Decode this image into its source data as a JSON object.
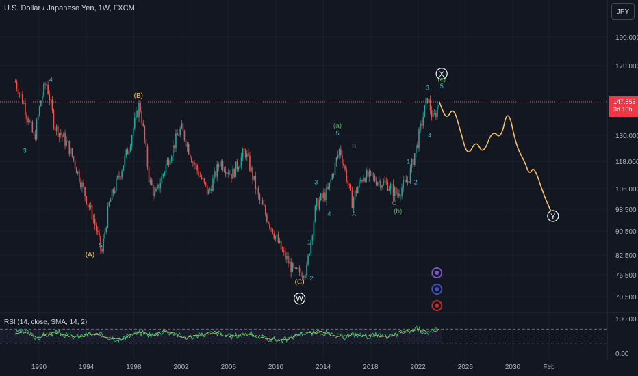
{
  "header": {
    "title": "U.S. Dollar / Japanese Yen, 1W, FXCM",
    "currency_button": "JPY"
  },
  "price_tag": {
    "price": "147.553",
    "countdown": "3d 10h",
    "color": "#f23645"
  },
  "rsi": {
    "label": "RSI (14, close, SMA, 14, 2)",
    "ticks": [
      "100.00",
      "0.00"
    ]
  },
  "colors": {
    "background": "#131722",
    "up_candle": "#26a69a",
    "down_candle": "#ef5350",
    "projection": "#f5c26b",
    "wave_cyan": "#26c6da",
    "wave_green": "#4caf50",
    "wave_yellow": "#f5c26b",
    "rsi_line": "#2ecc71",
    "rsi_sma": "#f5c26b"
  },
  "chart_data": {
    "type": "candlestick",
    "x_axis_ticks": [
      "1990",
      "1994",
      "1998",
      "2002",
      "2006",
      "2010",
      "2014",
      "2018",
      "2022",
      "2026",
      "2030",
      "Feb"
    ],
    "y_axis_ticks": [
      190.0,
      170.0,
      147.553,
      130.0,
      118.0,
      106.0,
      98.5,
      90.5,
      82.5,
      76.5,
      70.5
    ],
    "y_axis_tick_labels": [
      "190.000",
      "170.000",
      "130.000",
      "118.000",
      "106.000",
      "98.500",
      "90.500",
      "82.500",
      "76.500",
      "70.500"
    ],
    "current_price_line": 147.553,
    "price_path": [
      [
        1988.0,
        160
      ],
      [
        1988.8,
        145
      ],
      [
        1989.6,
        128
      ],
      [
        1990.2,
        150
      ],
      [
        1990.6,
        160
      ],
      [
        1991.3,
        135
      ],
      [
        1992.5,
        125
      ],
      [
        1993.8,
        105
      ],
      [
        1994.6,
        95
      ],
      [
        1995.3,
        83
      ],
      [
        1995.9,
        100
      ],
      [
        1996.8,
        112
      ],
      [
        1997.6,
        125
      ],
      [
        1998.5,
        147
      ],
      [
        1999.3,
        110
      ],
      [
        1999.8,
        103
      ],
      [
        2001.0,
        120
      ],
      [
        2002.0,
        134
      ],
      [
        2003.0,
        118
      ],
      [
        2004.3,
        104
      ],
      [
        2005.3,
        118
      ],
      [
        2006.3,
        112
      ],
      [
        2007.4,
        123
      ],
      [
        2008.5,
        103
      ],
      [
        2009.5,
        93
      ],
      [
        2010.6,
        83
      ],
      [
        2011.6,
        77
      ],
      [
        2012.6,
        78
      ],
      [
        2013.4,
        100
      ],
      [
        2014.4,
        105
      ],
      [
        2015.4,
        124
      ],
      [
        2016.4,
        101
      ],
      [
        2017.4,
        112
      ],
      [
        2018.4,
        110
      ],
      [
        2019.4,
        108
      ],
      [
        2020.2,
        104
      ],
      [
        2021.2,
        110
      ],
      [
        2022.0,
        128
      ],
      [
        2022.8,
        150
      ],
      [
        2023.3,
        138
      ],
      [
        2023.8,
        147.55
      ]
    ],
    "projection_path": [
      [
        2023.8,
        147.55
      ],
      [
        2024.4,
        138
      ],
      [
        2025.0,
        145
      ],
      [
        2025.6,
        132
      ],
      [
        2026.2,
        120
      ],
      [
        2026.9,
        128
      ],
      [
        2027.5,
        121
      ],
      [
        2028.3,
        133
      ],
      [
        2029.0,
        128
      ],
      [
        2029.6,
        145
      ],
      [
        2030.3,
        125
      ],
      [
        2031.0,
        118
      ],
      [
        2031.4,
        112
      ],
      [
        2031.8,
        116
      ],
      [
        2032.6,
        104
      ],
      [
        2033.2,
        98
      ]
    ],
    "wave_labels": [
      {
        "text": "4",
        "x": 1991.0,
        "y": 160,
        "color": "cyan"
      },
      {
        "text": "3",
        "x": 1988.8,
        "y": 122,
        "color": "cyan"
      },
      {
        "text": "(B)",
        "x": 1998.4,
        "y": 150,
        "color": "yellow"
      },
      {
        "text": "5",
        "x": 1995.2,
        "y": 85,
        "color": "cyan"
      },
      {
        "text": "(A)",
        "x": 1994.3,
        "y": 82,
        "color": "yellow"
      },
      {
        "text": "(a)",
        "x": 2015.2,
        "y": 134,
        "color": "green"
      },
      {
        "text": "5",
        "x": 2015.2,
        "y": 130,
        "color": "cyan"
      },
      {
        "text": "B",
        "x": 2016.6,
        "y": 124,
        "color": "gray"
      },
      {
        "text": "3",
        "x": 2013.4,
        "y": 108,
        "color": "cyan"
      },
      {
        "text": "4",
        "x": 2014.5,
        "y": 96,
        "color": "cyan"
      },
      {
        "text": "1",
        "x": 2012.8,
        "y": 86,
        "color": "cyan"
      },
      {
        "text": "2",
        "x": 2013.0,
        "y": 75,
        "color": "cyan"
      },
      {
        "text": "(C)",
        "x": 2012.0,
        "y": 74,
        "color": "yellow"
      },
      {
        "text": "A",
        "x": 2016.6,
        "y": 96,
        "color": "gray"
      },
      {
        "text": "C",
        "x": 2020.0,
        "y": 100,
        "color": "gray"
      },
      {
        "text": "(b)",
        "x": 2020.3,
        "y": 97,
        "color": "green"
      },
      {
        "text": "1",
        "x": 2021.2,
        "y": 117,
        "color": "cyan"
      },
      {
        "text": "2",
        "x": 2021.8,
        "y": 108,
        "color": "cyan"
      },
      {
        "text": "3",
        "x": 2022.8,
        "y": 155,
        "color": "cyan"
      },
      {
        "text": "4",
        "x": 2023.0,
        "y": 129,
        "color": "cyan"
      },
      {
        "text": "5",
        "x": 2024.0,
        "y": 156,
        "color": "cyan"
      },
      {
        "text": "(c)",
        "x": 2024.0,
        "y": 160,
        "color": "green"
      }
    ],
    "circle_labels": [
      {
        "text": "X",
        "x": 2024.0,
        "y": 165
      },
      {
        "text": "W",
        "x": 2012.0,
        "y": 70
      },
      {
        "text": "Y",
        "x": 2033.4,
        "y": 96
      }
    ],
    "rsi_range": [
      0,
      100
    ],
    "rsi_values": [
      58,
      62,
      45,
      55,
      60,
      50,
      48,
      56,
      52,
      46,
      40,
      55,
      60,
      52,
      65,
      58,
      45,
      50,
      56,
      60,
      48,
      52,
      58,
      46,
      42,
      38,
      44,
      60,
      58,
      62,
      50,
      48,
      55,
      50,
      52,
      47,
      56,
      65,
      70,
      60,
      68
    ]
  }
}
